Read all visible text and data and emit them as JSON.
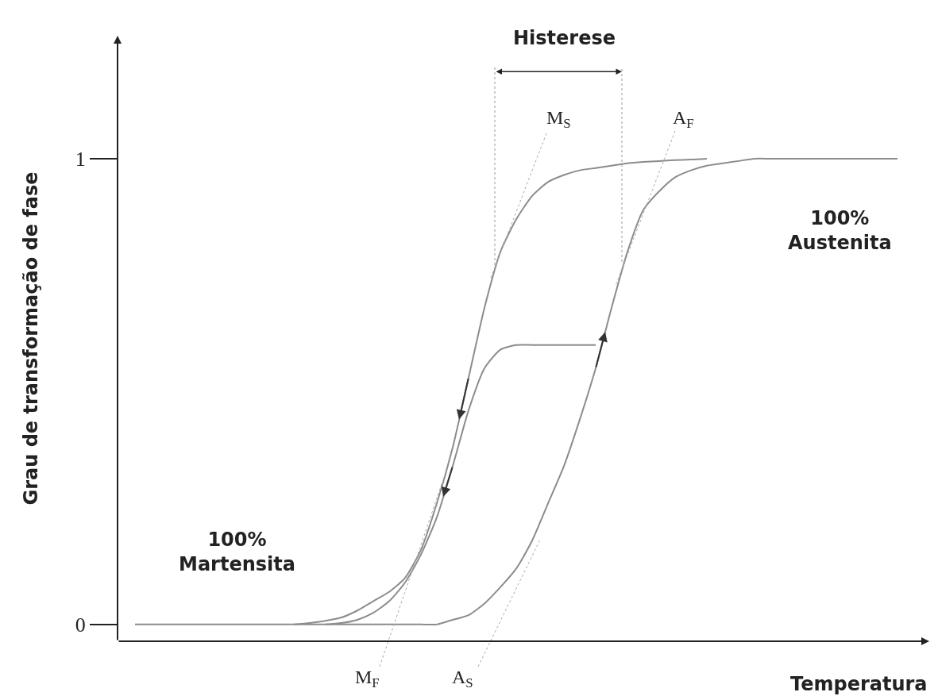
{
  "chart_data": {
    "type": "line",
    "ylabel": "Grau de transformação de fase",
    "xlabel": "Temperatura",
    "categories": [
      null,
      null,
      null,
      null,
      null,
      null,
      null,
      null,
      null,
      null,
      null,
      null,
      null,
      null,
      null,
      null,
      null,
      null,
      null,
      null,
      null,
      null,
      null,
      null,
      null,
      null,
      null,
      null,
      null,
      null,
      null,
      null,
      null,
      null,
      null,
      null,
      null,
      null,
      null,
      null,
      null,
      null,
      null,
      null,
      null,
      null,
      null,
      null,
      null
    ],
    "series": [
      {
        "color": "#8c8c8c",
        "values": [
          0,
          0,
          0,
          0,
          0,
          0,
          0,
          0,
          0,
          0,
          0,
          0,
          0,
          0,
          0,
          0,
          0,
          0,
          0,
          0,
          0.01,
          0.02,
          0.045,
          0.08,
          0.12,
          0.18,
          0.26,
          0.34,
          0.44,
          0.55,
          0.68,
          0.8,
          0.89,
          0.93,
          0.96,
          0.975,
          0.985,
          0.99,
          0.995,
          1,
          1,
          1,
          1,
          1,
          1,
          1,
          1,
          1,
          1
        ]
      },
      {
        "color": "#8c8c8c",
        "values": [
          null,
          null,
          null,
          null,
          null,
          null,
          null,
          null,
          null,
          null,
          0,
          0.003,
          0.008,
          0.015,
          0.03,
          0.05,
          0.07,
          0.1,
          0.16,
          0.26,
          0.38,
          0.53,
          0.68,
          0.8,
          0.87,
          0.92,
          0.95,
          0.965,
          0.975,
          0.98,
          0.985,
          0.99,
          0.993,
          0.995,
          0.997,
          0.998,
          1,
          null,
          null,
          null,
          null,
          null,
          null,
          null,
          null,
          null,
          null,
          null,
          null
        ]
      },
      {
        "color": "#8c8c8c",
        "values": [
          null,
          null,
          null,
          null,
          null,
          null,
          null,
          null,
          null,
          null,
          null,
          null,
          0,
          0.003,
          0.01,
          0.025,
          0.05,
          0.09,
          0.15,
          0.23,
          0.34,
          0.46,
          0.55,
          0.59,
          0.6,
          0.6,
          0.6,
          0.6,
          0.6,
          0.6,
          null,
          null,
          null,
          null,
          null,
          null,
          null,
          null,
          null,
          null,
          null,
          null,
          null,
          null,
          null,
          null,
          null,
          null,
          null
        ]
      }
    ],
    "ylim": [
      -0.036,
      1.264
    ],
    "yticks": [
      0,
      1
    ],
    "tick_labels": "y",
    "grid": false,
    "line_style": "solid",
    "marker": "none",
    "annotations": [
      "Histerese",
      "100%\nAustenita",
      "100%\nMartensita",
      "M$_{S}$",
      "A$_{F}$",
      "M$_{F}$",
      "A$_{S}$"
    ]
  }
}
